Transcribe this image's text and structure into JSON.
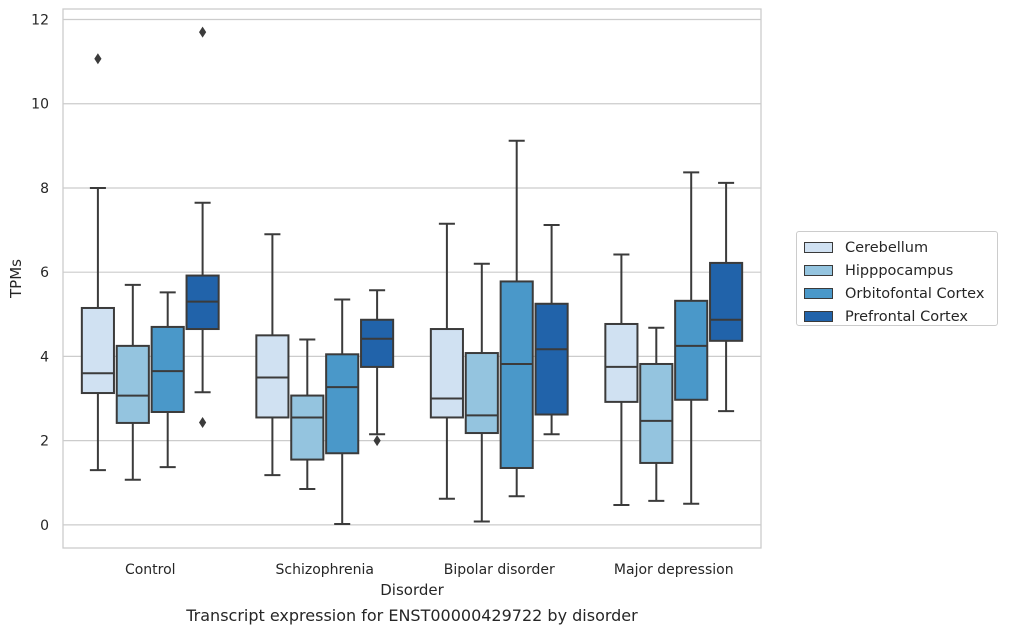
{
  "chart_data": {
    "type": "box",
    "title": "",
    "caption": "Transcript expression for ENST00000429722 by disorder",
    "xlabel": "Disorder",
    "ylabel": "TPMs",
    "ylim": [
      -0.55,
      12.25
    ],
    "yticks": [
      0,
      2,
      4,
      6,
      8,
      10,
      12
    ],
    "grid": "horizontal",
    "legend_position": "right",
    "categories": [
      "Control",
      "Schizophrenia",
      "Bipolar disorder",
      "Major depression"
    ],
    "series": [
      {
        "name": "Cerebellum",
        "color": "#d0e1f2",
        "boxes": [
          {
            "whisker_low": 1.3,
            "q1": 3.13,
            "median": 3.6,
            "q3": 5.15,
            "whisker_high": 8.0,
            "outliers": [
              11.07
            ]
          },
          {
            "whisker_low": 1.18,
            "q1": 2.55,
            "median": 3.5,
            "q3": 4.5,
            "whisker_high": 6.9,
            "outliers": []
          },
          {
            "whisker_low": 0.62,
            "q1": 2.55,
            "median": 3.0,
            "q3": 4.65,
            "whisker_high": 7.15,
            "outliers": []
          },
          {
            "whisker_low": 0.47,
            "q1": 2.92,
            "median": 3.75,
            "q3": 4.77,
            "whisker_high": 6.42,
            "outliers": []
          }
        ]
      },
      {
        "name": "Hipppocampus",
        "color": "#94c4df",
        "boxes": [
          {
            "whisker_low": 1.07,
            "q1": 2.42,
            "median": 3.07,
            "q3": 4.25,
            "whisker_high": 5.7,
            "outliers": []
          },
          {
            "whisker_low": 0.85,
            "q1": 1.55,
            "median": 2.55,
            "q3": 3.07,
            "whisker_high": 4.4,
            "outliers": []
          },
          {
            "whisker_low": 0.08,
            "q1": 2.18,
            "median": 2.6,
            "q3": 4.08,
            "whisker_high": 6.2,
            "outliers": []
          },
          {
            "whisker_low": 0.57,
            "q1": 1.47,
            "median": 2.47,
            "q3": 3.82,
            "whisker_high": 4.68,
            "outliers": []
          }
        ]
      },
      {
        "name": "Orbitofontal Cortex",
        "color": "#4a98c9",
        "boxes": [
          {
            "whisker_low": 1.37,
            "q1": 2.68,
            "median": 3.65,
            "q3": 4.7,
            "whisker_high": 5.52,
            "outliers": []
          },
          {
            "whisker_low": 0.02,
            "q1": 1.7,
            "median": 3.27,
            "q3": 4.05,
            "whisker_high": 5.35,
            "outliers": []
          },
          {
            "whisker_low": 0.68,
            "q1": 1.35,
            "median": 3.82,
            "q3": 5.78,
            "whisker_high": 9.12,
            "outliers": []
          },
          {
            "whisker_low": 0.5,
            "q1": 2.97,
            "median": 4.25,
            "q3": 5.32,
            "whisker_high": 8.37,
            "outliers": []
          }
        ]
      },
      {
        "name": "Prefrontal Cortex",
        "color": "#2163aa",
        "boxes": [
          {
            "whisker_low": 3.15,
            "q1": 4.65,
            "median": 5.3,
            "q3": 5.92,
            "whisker_high": 7.65,
            "outliers": [
              11.7,
              2.43
            ]
          },
          {
            "whisker_low": 2.15,
            "q1": 3.75,
            "median": 4.42,
            "q3": 4.87,
            "whisker_high": 5.57,
            "outliers": [
              2.0
            ]
          },
          {
            "whisker_low": 2.15,
            "q1": 2.62,
            "median": 4.17,
            "q3": 5.25,
            "whisker_high": 7.12,
            "outliers": []
          },
          {
            "whisker_low": 2.7,
            "q1": 4.37,
            "median": 4.87,
            "q3": 6.22,
            "whisker_high": 8.12,
            "outliers": []
          }
        ]
      }
    ]
  }
}
